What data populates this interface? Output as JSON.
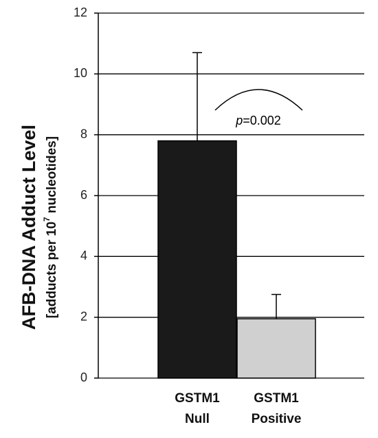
{
  "chart_data": {
    "type": "bar",
    "ylabel": "AFB-DNA Adduct Level",
    "ylabel_unit": {
      "before": "[adducts per 10",
      "superscript": "7",
      "after": " nucleotides]"
    },
    "categories": [
      "GSTM1\nNull",
      "GSTM1\nPositive"
    ],
    "series": [
      {
        "values": [
          7.8,
          1.95
        ],
        "errors": [
          2.9,
          0.8
        ],
        "colors": [
          "#1a1a1a",
          "#d0d0d0"
        ]
      }
    ],
    "annotation": {
      "italic": "p",
      "text": "=0.002"
    },
    "ylim": [
      0,
      12
    ],
    "yticks": [
      0,
      2,
      4,
      6,
      8,
      10,
      12
    ],
    "grid": true
  }
}
